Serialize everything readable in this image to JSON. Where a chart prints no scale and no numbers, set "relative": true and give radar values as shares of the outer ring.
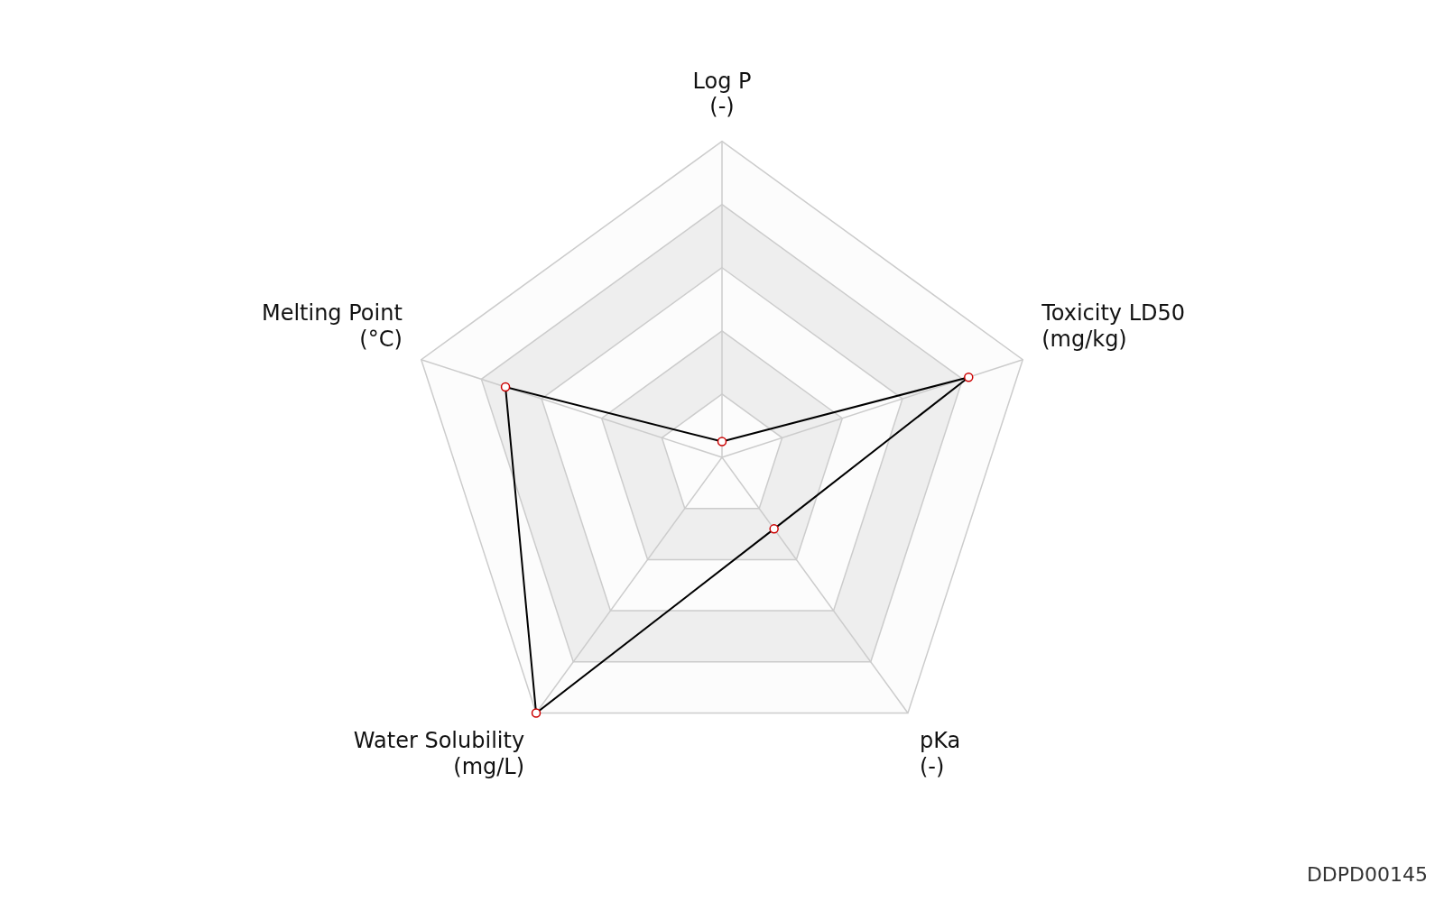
{
  "chart_data": {
    "type": "radar",
    "relative": true,
    "categories": [
      "Log P\n(-)",
      "Toxicity LD50\n(mg/kg)",
      "pKa\n(-)",
      "Water Solubility\n(mg/L)",
      "Melting Point\n(°C)"
    ],
    "series": [
      {
        "color": "#000000",
        "values": [
          0.05,
          0.82,
          0.28,
          1.0,
          0.72
        ]
      }
    ],
    "marker": "circle",
    "legend": false,
    "annotations": [
      "DDPD00145"
    ]
  }
}
